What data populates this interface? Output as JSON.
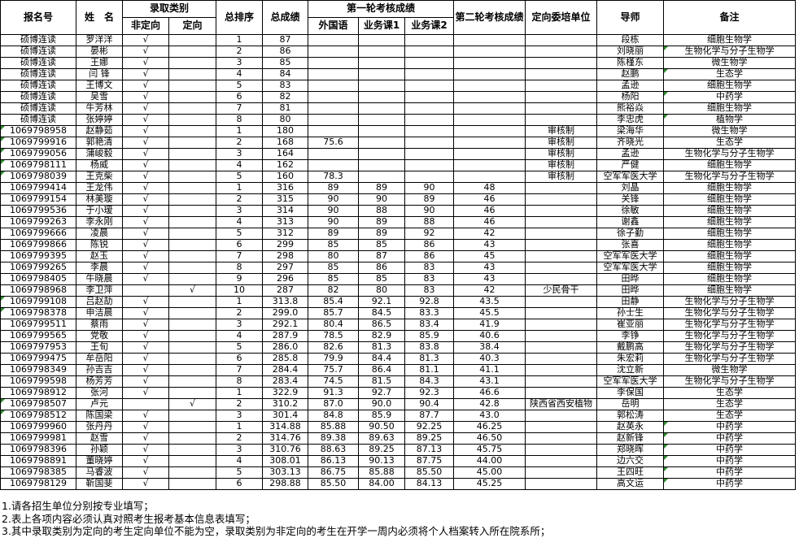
{
  "table": {
    "headers": {
      "reg": "报名号",
      "name": "姓　名",
      "admission_category": "录取类别",
      "nondir": "非定向",
      "dir": "定向",
      "rank": "总排序",
      "total": "总成绩",
      "round1": "第一轮考核成绩",
      "foreign": "外国语",
      "course1": "业务课1",
      "course2": "业务课2",
      "round2": "第二轮考核成绩",
      "unit": "定向委培单位",
      "supervisor": "导师",
      "remark": "备注"
    },
    "check_mark": "√",
    "fields": [
      "reg",
      "name",
      "nondir",
      "dir",
      "rank",
      "total",
      "foreign",
      "course1",
      "course2",
      "round2",
      "unit",
      "supervisor",
      "remark"
    ],
    "rows": [
      {
        "reg": "硕博连读",
        "name": "罗洋洋",
        "nondir": "√",
        "dir": "",
        "rank": "1",
        "total": "87",
        "foreign": "",
        "course1": "",
        "course2": "",
        "round2": "",
        "unit": "",
        "supervisor": "段栋",
        "remark": "细胞生物学"
      },
      {
        "reg": "硕博连读",
        "name": "晏彬",
        "nondir": "√",
        "rank": "2",
        "total": "86",
        "supervisor": "刘晓丽",
        "remark": "生物化学与分子生物学",
        "remark_flag": true
      },
      {
        "reg": "硕博连读",
        "name": "王娜",
        "nondir": "√",
        "rank": "3",
        "total": "85",
        "supervisor": "陈槿东",
        "remark": "微生物学"
      },
      {
        "reg": "硕博连读",
        "name": "闫 锋",
        "nondir": "√",
        "rank": "4",
        "total": "84",
        "supervisor": "赵鹏",
        "remark": "生态学",
        "remark_flag": true
      },
      {
        "reg": "硕博连读",
        "name": "王博文",
        "nondir": "√",
        "rank": "5",
        "total": "83",
        "supervisor": "孟逊",
        "remark": "细胞生物学"
      },
      {
        "reg": "硕博连读",
        "name": "吴雪",
        "nondir": "√",
        "rank": "6",
        "total": "82",
        "supervisor": "杨阳",
        "remark": "中药学",
        "remark_flag": true
      },
      {
        "reg": "硕博连读",
        "name": "牛芳林",
        "nondir": "√",
        "rank": "7",
        "total": "81",
        "supervisor": "熊裕焱",
        "remark": "细胞生物学"
      },
      {
        "reg": "硕博连读",
        "name": "张婷婷",
        "nondir": "√",
        "rank": "8",
        "total": "80",
        "supervisor": "李忠虎",
        "remark": "植物学",
        "remark_flag": true
      },
      {
        "reg": "1069798958",
        "name": "赵静茹",
        "nondir": "√",
        "rank": "1",
        "total": "180",
        "unit": "审核制",
        "supervisor": "梁海华",
        "remark": "微生物学",
        "reg_flag": true
      },
      {
        "reg": "1069799916",
        "name": "郭艳清",
        "nondir": "√",
        "rank": "2",
        "total": "168",
        "foreign": "75.6",
        "unit": "审核制",
        "supervisor": "齐晓光",
        "remark": "生态学",
        "reg_flag": true
      },
      {
        "reg": "1069799056",
        "name": "蒲峻毅",
        "nondir": "√",
        "rank": "3",
        "total": "164",
        "unit": "审核制",
        "supervisor": "孟逊",
        "remark": "生物化学与分子生物学",
        "reg_flag": true
      },
      {
        "reg": "1069798111",
        "name": "杨威",
        "nondir": "√",
        "rank": "4",
        "total": "162",
        "unit": "审核制",
        "supervisor": "严健",
        "remark": "细胞生物学",
        "reg_flag": true
      },
      {
        "reg": "1069798039",
        "name": "王克柴",
        "nondir": "√",
        "rank": "5",
        "total": "160",
        "foreign": "78.3",
        "unit": "审核制",
        "supervisor": "空军军医大学",
        "remark": "生物化学与分子生物学",
        "reg_flag": true
      },
      {
        "reg": "1069799414",
        "name": "王龙伟",
        "nondir": "√",
        "rank": "1",
        "total": "316",
        "foreign": "89",
        "course1": "89",
        "course2": "90",
        "round2": "48",
        "supervisor": "刘晶",
        "remark": "细胞生物学"
      },
      {
        "reg": "1069799154",
        "name": "林美璇",
        "nondir": "√",
        "rank": "2",
        "total": "315",
        "foreign": "90",
        "course1": "90",
        "course2": "89",
        "round2": "46",
        "supervisor": "关锋",
        "remark": "细胞生物学"
      },
      {
        "reg": "1069799536",
        "name": "于小瑷",
        "nondir": "√",
        "rank": "3",
        "total": "314",
        "foreign": "90",
        "course1": "88",
        "course2": "90",
        "round2": "46",
        "supervisor": "徐敏",
        "remark": "细胞生物学"
      },
      {
        "reg": "1069799263",
        "name": "李永刚",
        "nondir": "√",
        "rank": "4",
        "total": "313",
        "foreign": "90",
        "course1": "89",
        "course2": "88",
        "round2": "46",
        "supervisor": "谢鑫",
        "remark": "细胞生物学"
      },
      {
        "reg": "1069799666",
        "name": "凌晨",
        "nondir": "√",
        "rank": "5",
        "total": "312",
        "foreign": "89",
        "course1": "89",
        "course2": "92",
        "round2": "42",
        "supervisor": "徐子勤",
        "remark": "细胞生物学"
      },
      {
        "reg": "1069799866",
        "name": "陈锐",
        "nondir": "√",
        "rank": "6",
        "total": "299",
        "foreign": "85",
        "course1": "85",
        "course2": "86",
        "round2": "43",
        "supervisor": "张喜",
        "remark": "细胞生物学"
      },
      {
        "reg": "1069799395",
        "name": "赵玉",
        "nondir": "√",
        "rank": "7",
        "total": "298",
        "foreign": "80",
        "course1": "87",
        "course2": "86",
        "round2": "45",
        "supervisor": "空军军医大学",
        "remark": "细胞生物学"
      },
      {
        "reg": "1069799265",
        "name": "李晨",
        "nondir": "√",
        "rank": "8",
        "total": "297",
        "foreign": "85",
        "course1": "86",
        "course2": "83",
        "round2": "43",
        "supervisor": "空军军医大学",
        "remark": "细胞生物学"
      },
      {
        "reg": "1069798405",
        "name": "牛晓晨",
        "nondir": "√",
        "rank": "9",
        "total": "296",
        "foreign": "85",
        "course1": "85",
        "course2": "83",
        "round2": "43",
        "supervisor": "田晔",
        "remark": "细胞生物学"
      },
      {
        "reg": "1069798968",
        "name": "李卫萍",
        "dir": "√",
        "rank": "10",
        "total": "287",
        "foreign": "82",
        "course1": "80",
        "course2": "83",
        "round2": "42",
        "unit": "少民骨干",
        "supervisor": "田晔",
        "remark": "细胞生物学"
      },
      {
        "reg": "1069799108",
        "name": "吕赵劼",
        "nondir": "√",
        "rank": "1",
        "total": "313.8",
        "foreign": "85.4",
        "course1": "92.1",
        "course2": "92.8",
        "round2": "43.5",
        "supervisor": "田静",
        "remark": "生物化学与分子生物学",
        "reg_flag": true
      },
      {
        "reg": "1069798378",
        "name": "申洁晨",
        "nondir": "√",
        "rank": "2",
        "total": "299.0",
        "foreign": "85.7",
        "course1": "84.5",
        "course2": "83.3",
        "round2": "45.5",
        "supervisor": "孙士生",
        "remark": "生物化学与分子生物学",
        "reg_flag": true
      },
      {
        "reg": "1069799511",
        "name": "蔡雨",
        "nondir": "√",
        "rank": "3",
        "total": "292.1",
        "foreign": "80.4",
        "course1": "86.5",
        "course2": "83.4",
        "round2": "41.9",
        "supervisor": "崔亚丽",
        "remark": "生物化学与分子生物学"
      },
      {
        "reg": "1069799565",
        "name": "党敬",
        "nondir": "√",
        "rank": "4",
        "total": "287.9",
        "foreign": "78.5",
        "course1": "82.9",
        "course2": "85.9",
        "round2": "40.6",
        "supervisor": "李铮",
        "remark": "生物化学与分子生物学"
      },
      {
        "reg": "1069797953",
        "name": "王旬",
        "nondir": "√",
        "rank": "5",
        "total": "286.0",
        "foreign": "82.6",
        "course1": "81.3",
        "course2": "83.8",
        "round2": "38.4",
        "supervisor": "戴鹏高",
        "remark": "生物化学与分子生物学"
      },
      {
        "reg": "1069799475",
        "name": "牟岳阳",
        "nondir": "√",
        "rank": "6",
        "total": "285.8",
        "foreign": "79.9",
        "course1": "84.4",
        "course2": "81.3",
        "round2": "40.3",
        "supervisor": "朱宏莉",
        "remark": "生物化学与分子生物学"
      },
      {
        "reg": "1069798349",
        "name": "孙吉吉",
        "nondir": "√",
        "rank": "7",
        "total": "284.4",
        "foreign": "75.7",
        "course1": "86.4",
        "course2": "81.1",
        "round2": "41.1",
        "supervisor": "沈立新",
        "remark": "微生物学"
      },
      {
        "reg": "1069799598",
        "name": "杨芳芳",
        "nondir": "√",
        "rank": "8",
        "total": "283.4",
        "foreign": "74.5",
        "course1": "81.5",
        "course2": "84.3",
        "round2": "43.1",
        "supervisor": "空军军医大学",
        "remark": "生物化学与分子生物学"
      },
      {
        "reg": "1069798912",
        "name": "张河",
        "nondir": "√",
        "rank": "1",
        "total": "322.9",
        "foreign": "91.3",
        "course1": "92.7",
        "course2": "92.3",
        "round2": "46.6",
        "supervisor": "李保国",
        "remark": "生态学"
      },
      {
        "reg": "1069798507",
        "name": "卢元",
        "dir": "√",
        "rank": "2",
        "total": "310.2",
        "foreign": "87.0",
        "course1": "90.0",
        "course2": "90.4",
        "round2": "42.8",
        "unit": "陕西省西安植物",
        "supervisor": "岳明",
        "remark": "生态学",
        "reg_flag": true
      },
      {
        "reg": "1069798512",
        "name": "陈国梁",
        "nondir": "√",
        "rank": "3",
        "total": "301.4",
        "foreign": "84.8",
        "course1": "85.9",
        "course2": "87.7",
        "round2": "43.0",
        "supervisor": "郭松涛",
        "remark": "生态学",
        "reg_flag": true
      },
      {
        "reg": "1069799960",
        "name": "张丹丹",
        "nondir": "√",
        "rank": "1",
        "total": "314.88",
        "foreign": "85.88",
        "course1": "90.50",
        "course2": "92.25",
        "round2": "46.25",
        "supervisor": "赵英永",
        "remark": "中药学",
        "remark_flag": true
      },
      {
        "reg": "1069799981",
        "name": "赵雪",
        "nondir": "√",
        "rank": "2",
        "total": "314.76",
        "foreign": "89.38",
        "course1": "89.63",
        "course2": "89.25",
        "round2": "46.50",
        "supervisor": "赵新锋",
        "remark": "中药学",
        "remark_flag": true
      },
      {
        "reg": "1069798396",
        "name": "孙颖",
        "nondir": "√",
        "rank": "3",
        "total": "310.76",
        "foreign": "88.63",
        "course1": "89.25",
        "course2": "87.13",
        "round2": "45.75",
        "supervisor": "郑晓晖",
        "remark": "中药学",
        "remark_flag": true
      },
      {
        "reg": "1069798891",
        "name": "董晓婷",
        "nondir": "√",
        "rank": "4",
        "total": "308.01",
        "foreign": "86.13",
        "course1": "90.13",
        "course2": "87.75",
        "round2": "44.00",
        "supervisor": "边六交",
        "remark": "中药学",
        "remark_flag": true
      },
      {
        "reg": "1069798385",
        "name": "马睿波",
        "nondir": "√",
        "rank": "5",
        "total": "303.13",
        "foreign": "86.75",
        "course1": "85.88",
        "course2": "85.50",
        "round2": "45.00",
        "supervisor": "王四旺",
        "remark": "中药学",
        "remark_flag": true
      },
      {
        "reg": "1069798129",
        "name": "靳国斐",
        "nondir": "√",
        "rank": "6",
        "total": "298.88",
        "foreign": "85.50",
        "course1": "84.00",
        "course2": "84.13",
        "round2": "45.25",
        "supervisor": "高文运",
        "remark": "中药学",
        "remark_flag": true
      }
    ]
  },
  "notes": {
    "items": [
      "1.请各招生单位分别按专业填写；",
      "2.表上各项内容必须认真对照考生报考基本信息表填写；",
      "3.其中录取类别为定向的考生定向单位不能为空，录取类别为非定向的考生在开学一周内必须将个人档案转入所在院系所；"
    ]
  },
  "colors": {
    "flag_green": "#2e8b2e",
    "grid_border": "#000000",
    "background": "#ffffff"
  }
}
